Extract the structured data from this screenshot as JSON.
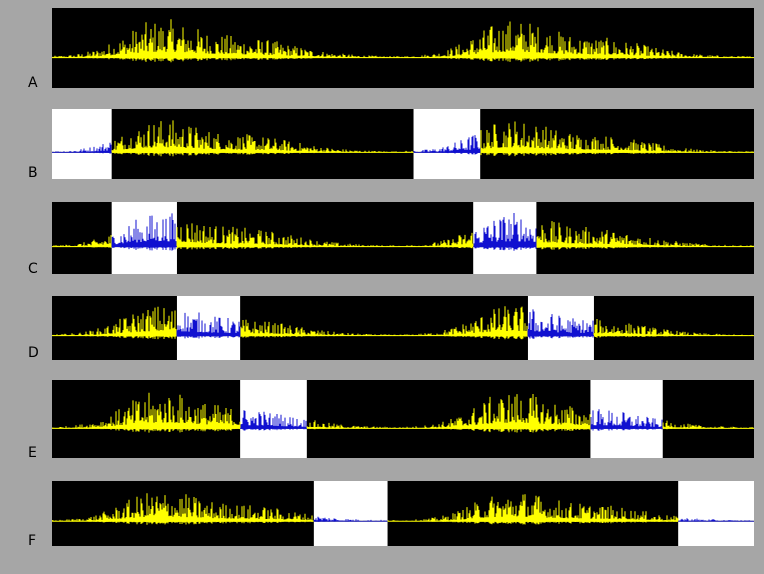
{
  "figure": {
    "background_color": "#a6a6a6",
    "panel_background": "#000000",
    "highlight_color": "#ffffff",
    "signal_color": "#ffff00",
    "highlight_signal_color": "#1010d0"
  },
  "rows": [
    {
      "label": "A",
      "highlight_windows": []
    },
    {
      "label": "B",
      "highlight_windows": [
        [
          0.0,
          0.085
        ],
        [
          0.515,
          0.61
        ]
      ]
    },
    {
      "label": "C",
      "highlight_windows": [
        [
          0.085,
          0.178
        ],
        [
          0.6,
          0.69
        ]
      ]
    },
    {
      "label": "D",
      "highlight_windows": [
        [
          0.178,
          0.268
        ],
        [
          0.678,
          0.772
        ]
      ]
    },
    {
      "label": "E",
      "highlight_windows": [
        [
          0.268,
          0.363
        ],
        [
          0.767,
          0.87
        ]
      ]
    },
    {
      "label": "F",
      "highlight_windows": [
        [
          0.373,
          0.478
        ],
        [
          0.892,
          1.0
        ]
      ]
    }
  ]
}
